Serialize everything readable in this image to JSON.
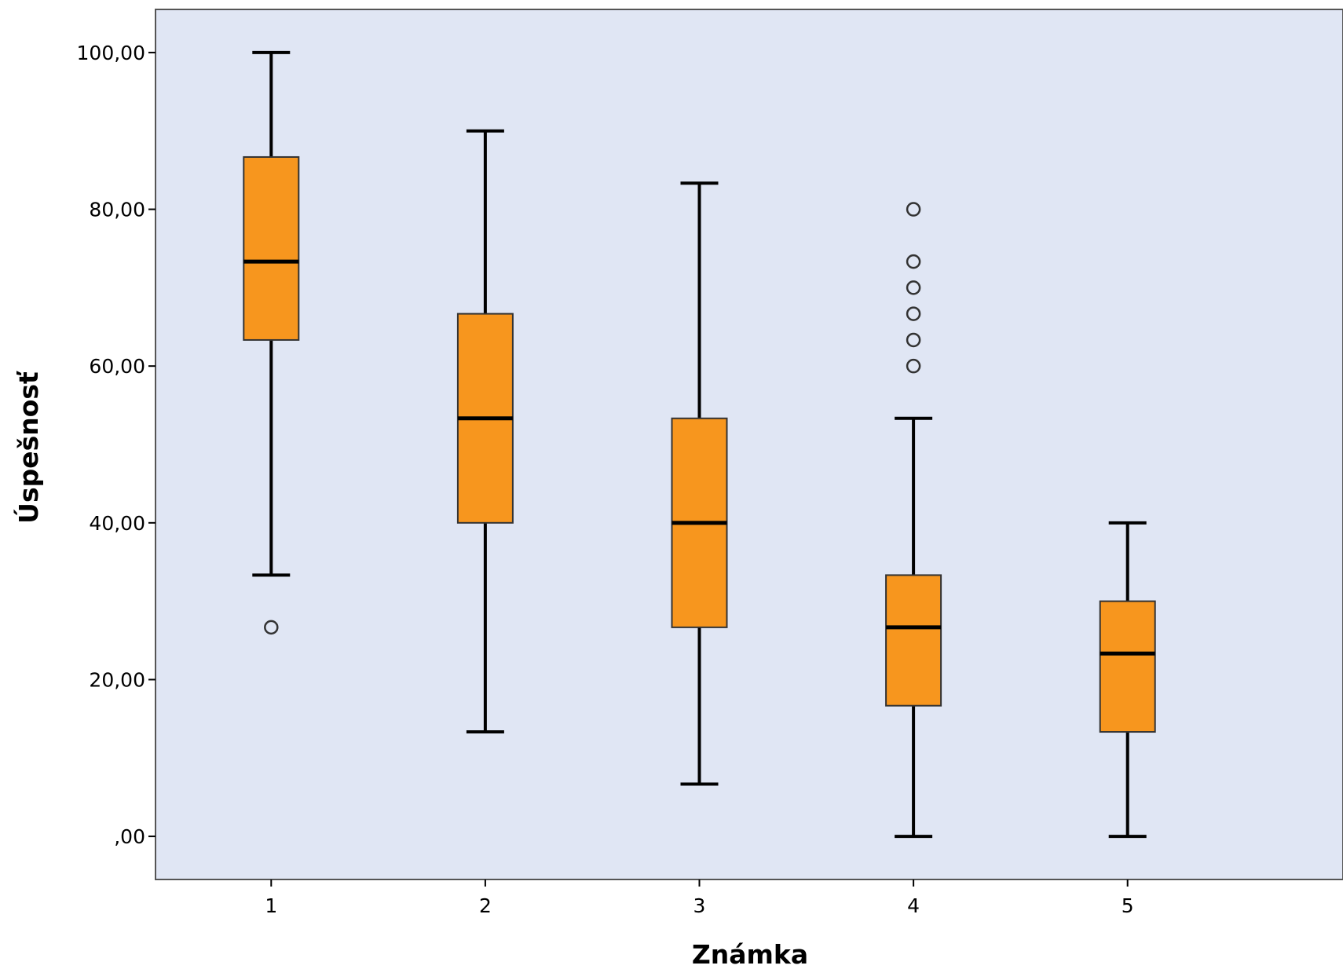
{
  "chart_data": {
    "type": "boxplot",
    "title": "",
    "xlabel": "Známka",
    "ylabel": "Úspešnosť",
    "ylim": [
      -5.5,
      105.5
    ],
    "y_ticks": [
      0,
      20,
      40,
      60,
      80,
      100
    ],
    "y_tick_labels": [
      ",00",
      "20,00",
      "40,00",
      "60,00",
      "80,00",
      "100,00"
    ],
    "categories": [
      "1",
      "2",
      "3",
      "4",
      "5"
    ],
    "boxes": [
      {
        "category": "1",
        "min": 33.33,
        "q1": 63.33,
        "median": 73.33,
        "q3": 86.67,
        "max": 100,
        "outliers": [
          26.67
        ]
      },
      {
        "category": "2",
        "min": 13.33,
        "q1": 40,
        "median": 53.33,
        "q3": 66.67,
        "max": 90,
        "outliers": []
      },
      {
        "category": "3",
        "min": 6.67,
        "q1": 26.67,
        "median": 40,
        "q3": 53.33,
        "max": 83.33,
        "outliers": []
      },
      {
        "category": "4",
        "min": 0,
        "q1": 16.67,
        "median": 26.67,
        "q3": 33.33,
        "max": 53.33,
        "outliers": [
          60,
          63.33,
          66.67,
          70,
          73.33,
          80
        ]
      },
      {
        "category": "5",
        "min": 0,
        "q1": 13.33,
        "median": 23.33,
        "q3": 30,
        "max": 40,
        "outliers": []
      }
    ],
    "grid": false,
    "box_color": "#f7961e",
    "plot_background": "#e0e6f4"
  }
}
